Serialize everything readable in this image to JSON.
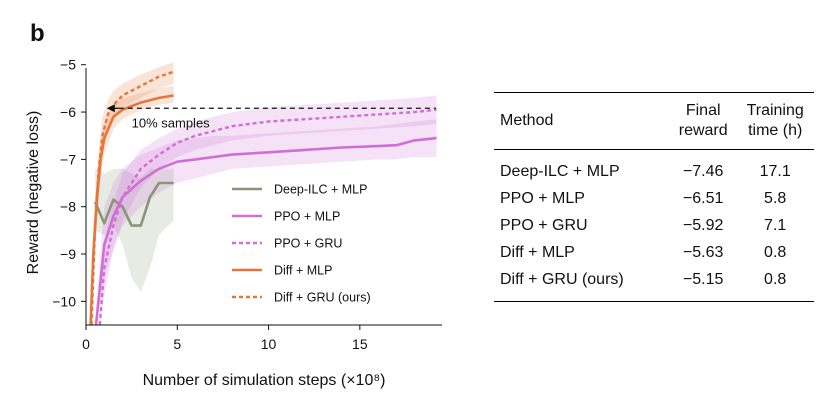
{
  "panel_label": "b",
  "chart_data": {
    "type": "line",
    "xlabel": "Number of simulation steps (×10⁸)",
    "ylabel": "Reward (negative loss)",
    "xlim": [
      0,
      19.5
    ],
    "ylim": [
      -10.5,
      -4.9
    ],
    "xticks": [
      0,
      5,
      10,
      15
    ],
    "yticks": [
      -5,
      -6,
      -7,
      -8,
      -9,
      -10
    ],
    "legend_position": "center-right",
    "annotation": {
      "text": "10% samples",
      "reference_level": -5.92
    },
    "colors": {
      "deep_ilc": "#8a957a",
      "ppo": "#cf6fd6",
      "diff": "#e5763a"
    },
    "series": [
      {
        "name": "Deep-ILC + MLP",
        "style": "solid",
        "color": "#8a957a",
        "x": [
          0.5,
          1.0,
          1.5,
          2.0,
          2.5,
          3.0,
          3.5,
          4.0,
          4.5,
          4.8
        ],
        "y": [
          -7.9,
          -8.35,
          -7.85,
          -8.0,
          -8.4,
          -8.4,
          -7.8,
          -7.5,
          -7.5,
          -7.5
        ],
        "band": {
          "x": [
            0.5,
            1.0,
            1.5,
            2.0,
            2.5,
            3.0,
            3.5,
            4.0,
            4.5,
            4.8
          ],
          "lo": [
            -8.5,
            -8.6,
            -8.4,
            -8.8,
            -9.5,
            -9.8,
            -9.3,
            -8.6,
            -8.4,
            -8.3
          ],
          "hi": [
            -7.2,
            -7.3,
            -7.2,
            -7.2,
            -7.3,
            -7.4,
            -7.2,
            -7.2,
            -7.2,
            -7.2
          ]
        }
      },
      {
        "name": "PPO + MLP",
        "style": "solid",
        "color": "#cf6fd6",
        "x": [
          0.55,
          1.0,
          1.5,
          2,
          3,
          4,
          5,
          6,
          7,
          8,
          10,
          12,
          14,
          16,
          17,
          18,
          19.2
        ],
        "y": [
          -10.5,
          -8.8,
          -8.2,
          -7.8,
          -7.45,
          -7.2,
          -7.05,
          -7.0,
          -6.95,
          -6.9,
          -6.85,
          -6.8,
          -6.75,
          -6.72,
          -6.7,
          -6.6,
          -6.55
        ],
        "band": {
          "x": [
            0.55,
            1.0,
            1.5,
            2,
            3,
            4,
            5,
            6,
            7,
            8,
            10,
            12,
            14,
            16,
            17,
            18,
            19.2
          ],
          "lo": [
            -10.5,
            -9.5,
            -8.9,
            -8.4,
            -8.0,
            -7.7,
            -7.5,
            -7.4,
            -7.3,
            -7.2,
            -7.15,
            -7.1,
            -7.05,
            -7.0,
            -7.0,
            -6.95,
            -6.95
          ],
          "hi": [
            -10.2,
            -8.0,
            -7.5,
            -7.2,
            -6.9,
            -6.75,
            -6.6,
            -6.55,
            -6.5,
            -6.5,
            -6.45,
            -6.4,
            -6.35,
            -6.3,
            -6.25,
            -6.2,
            -6.15
          ]
        }
      },
      {
        "name": "PPO + GRU",
        "style": "dotted",
        "color": "#cf6fd6",
        "x": [
          0.75,
          1.0,
          1.5,
          2,
          3,
          4,
          5,
          6,
          7,
          8,
          10,
          12,
          14,
          16,
          18,
          19.2
        ],
        "y": [
          -10.5,
          -9.3,
          -8.4,
          -7.8,
          -7.2,
          -6.9,
          -6.65,
          -6.5,
          -6.4,
          -6.3,
          -6.2,
          -6.15,
          -6.1,
          -6.05,
          -6.0,
          -5.95
        ],
        "band": {
          "x": [
            0.75,
            1.0,
            1.5,
            2,
            3,
            4,
            5,
            6,
            7,
            8,
            10,
            12,
            14,
            16,
            18,
            19.2
          ],
          "lo": [
            -10.5,
            -9.9,
            -8.9,
            -8.3,
            -7.6,
            -7.2,
            -6.95,
            -6.8,
            -6.7,
            -6.6,
            -6.5,
            -6.45,
            -6.4,
            -6.35,
            -6.3,
            -6.25
          ],
          "hi": [
            -10.3,
            -8.7,
            -7.9,
            -7.3,
            -6.8,
            -6.55,
            -6.35,
            -6.2,
            -6.1,
            -6.0,
            -5.9,
            -5.85,
            -5.8,
            -5.75,
            -5.7,
            -5.65
          ]
        }
      },
      {
        "name": "Diff + MLP",
        "style": "solid",
        "color": "#e5763a",
        "x": [
          0.25,
          0.4,
          0.6,
          0.8,
          1.0,
          1.5,
          2,
          3,
          4,
          4.8
        ],
        "y": [
          -10.5,
          -9.0,
          -7.8,
          -7.0,
          -6.55,
          -6.1,
          -5.95,
          -5.8,
          -5.7,
          -5.65
        ],
        "band": {
          "x": [
            0.25,
            0.4,
            0.6,
            0.8,
            1.0,
            1.5,
            2,
            3,
            4,
            4.8
          ],
          "lo": [
            -10.5,
            -9.5,
            -8.3,
            -7.4,
            -6.9,
            -6.35,
            -6.15,
            -5.95,
            -5.85,
            -5.8
          ],
          "hi": [
            -10.2,
            -8.5,
            -7.3,
            -6.6,
            -6.2,
            -5.85,
            -5.7,
            -5.6,
            -5.5,
            -5.45
          ]
        }
      },
      {
        "name": "Diff + GRU (ours)",
        "style": "dotted",
        "color": "#e5763a",
        "x": [
          0.3,
          0.5,
          0.7,
          0.9,
          1.2,
          1.5,
          2,
          3,
          4,
          4.8
        ],
        "y": [
          -10.5,
          -8.4,
          -7.2,
          -6.5,
          -6.05,
          -5.85,
          -5.65,
          -5.45,
          -5.25,
          -5.15
        ],
        "band": {
          "x": [
            0.3,
            0.5,
            0.7,
            0.9,
            1.2,
            1.5,
            2,
            3,
            4,
            4.8
          ],
          "lo": [
            -10.5,
            -8.9,
            -7.7,
            -6.9,
            -6.35,
            -6.1,
            -5.9,
            -5.7,
            -5.5,
            -5.4
          ],
          "hi": [
            -10.2,
            -7.9,
            -6.8,
            -6.1,
            -5.75,
            -5.55,
            -5.4,
            -5.2,
            -5.05,
            -4.95
          ]
        }
      }
    ]
  },
  "table": {
    "headers": {
      "method": "Method",
      "reward_line1": "Final",
      "reward_line2": "reward",
      "time_line1": "Training",
      "time_line2": "time (h)"
    },
    "rows": [
      {
        "method": "Deep-ILC + MLP",
        "reward": "−7.46",
        "time": "17.1"
      },
      {
        "method": "PPO + MLP",
        "reward": "−6.51",
        "time": "5.8"
      },
      {
        "method": "PPO + GRU",
        "reward": "−5.92",
        "time": "7.1"
      },
      {
        "method": "Diff + MLP",
        "reward": "−5.63",
        "time": "0.8"
      },
      {
        "method": "Diff + GRU (ours)",
        "reward": "−5.15",
        "time": "0.8"
      }
    ]
  }
}
